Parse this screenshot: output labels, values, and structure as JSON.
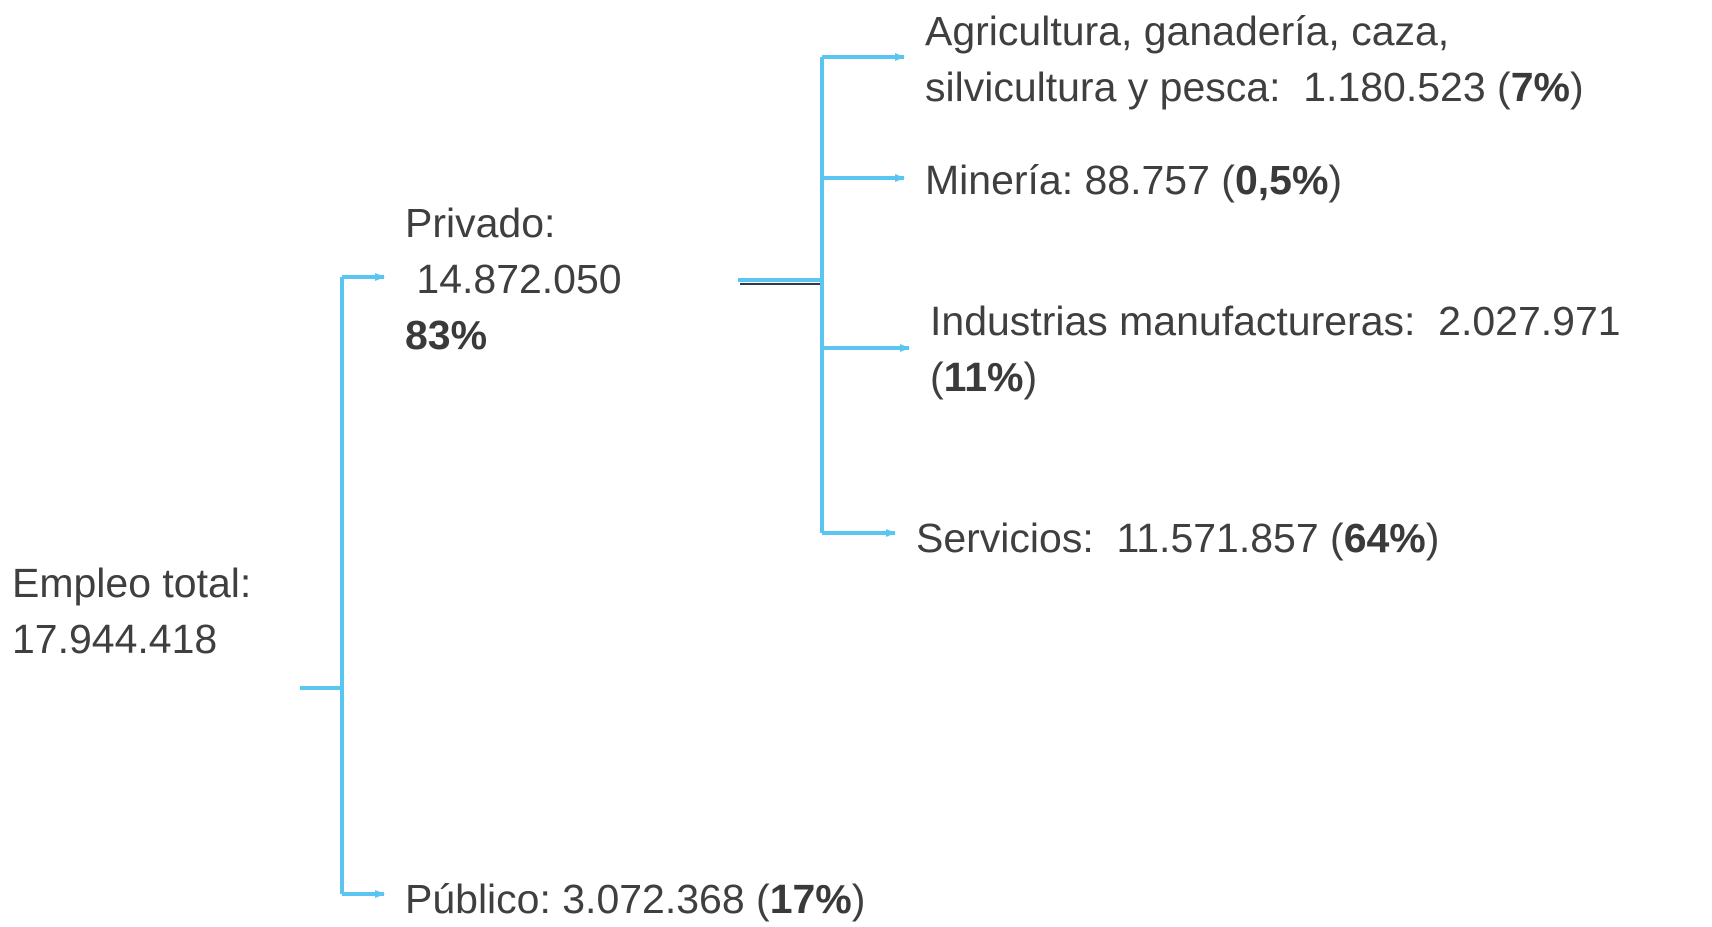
{
  "colors": {
    "connector": "#5bc5f2",
    "connector_dark": "#2b3a45",
    "text": "#3f3f3f"
  },
  "total": {
    "label": "Empleo total:",
    "value": "17.944.418"
  },
  "privado": {
    "label": "Privado:",
    "value": " 14.872.050",
    "percent": "83%"
  },
  "publico": {
    "label": "Público: 3.072.368 (",
    "percent": "17%",
    "close": ")"
  },
  "sectors": {
    "agricultura": {
      "line1": "Agricultura, ganadería, caza,",
      "line2": "silvicultura y pesca:  1.180.523 (",
      "percent": "7%",
      "close": ")"
    },
    "mineria": {
      "label": "Minería: 88.757 (",
      "percent": "0,5%",
      "close": ")"
    },
    "industria": {
      "line1": "Industrias manufactureras:  2.027.971",
      "open": "(",
      "percent": "11%",
      "close": ")"
    },
    "servicios": {
      "label": "Servicios:  11.571.857 (",
      "percent": "64%",
      "close": ")"
    }
  }
}
